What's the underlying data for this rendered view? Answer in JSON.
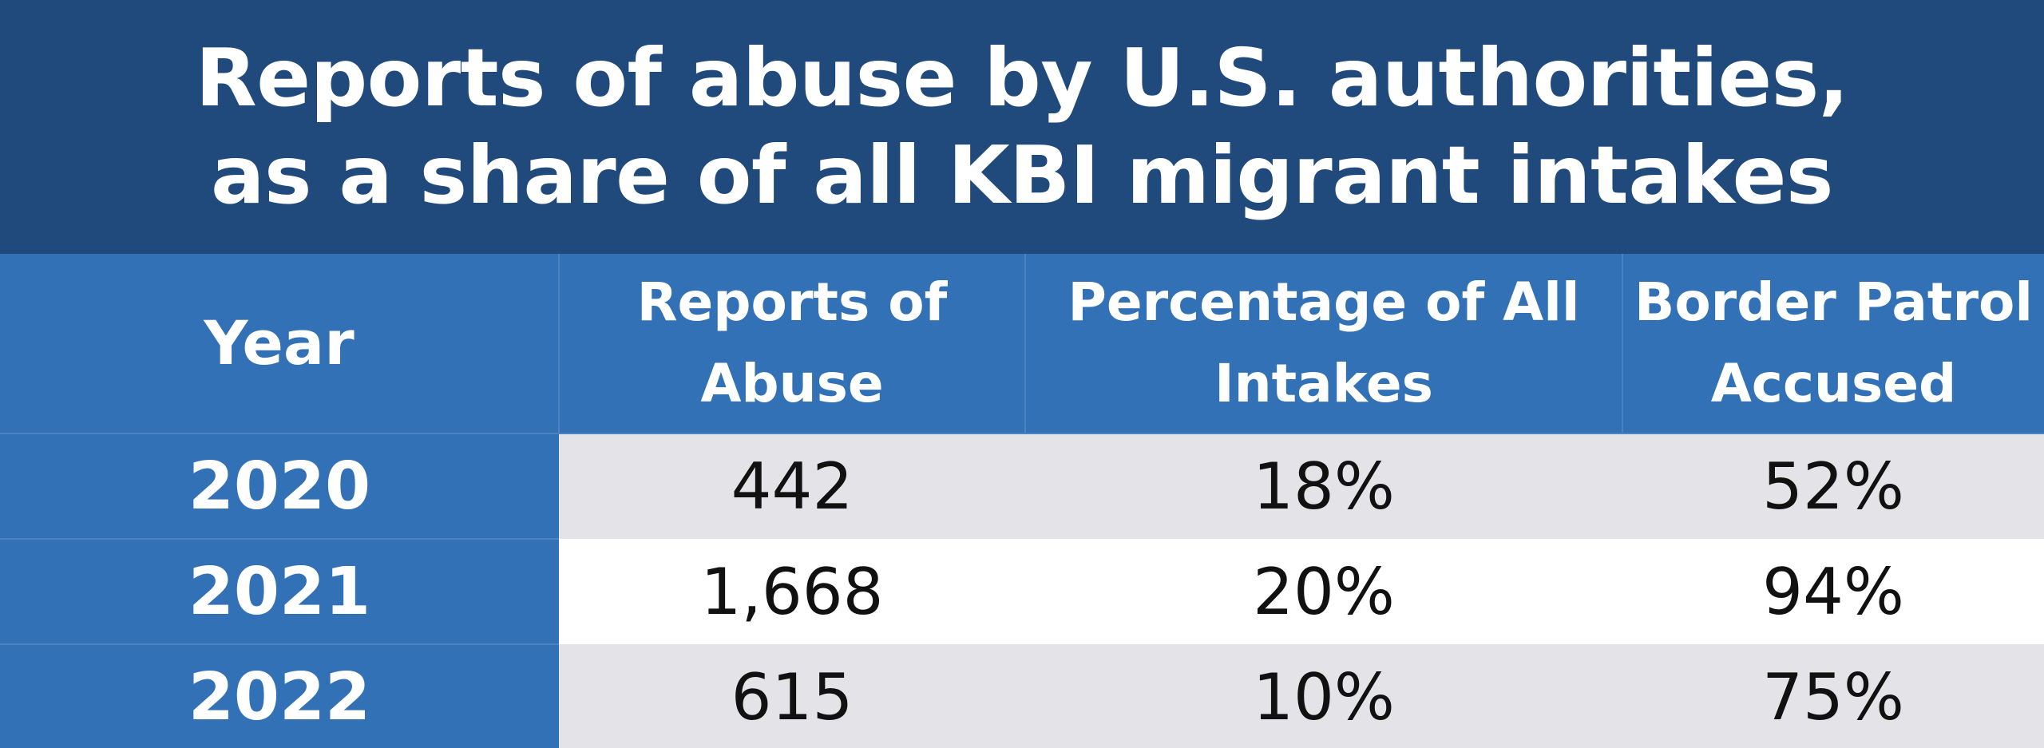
{
  "chart_data": {
    "type": "table",
    "title_lines": [
      "Reports of abuse by U.S. authorities,",
      "as a share of all KBI migrant intakes"
    ],
    "columns": [
      [
        "Year"
      ],
      [
        "Reports of",
        "Abuse"
      ],
      [
        "Percentage of All",
        "Intakes"
      ],
      [
        "Border Patrol",
        "Accused"
      ]
    ],
    "rows": [
      {
        "year": "2020",
        "reports": "442",
        "percentage": "18%",
        "border_patrol": "52%"
      },
      {
        "year": "2021",
        "reports": "1,668",
        "percentage": "20%",
        "border_patrol": "94%"
      },
      {
        "year": "2022",
        "reports": "615",
        "percentage": "10%",
        "border_patrol": "75%"
      }
    ],
    "values": {
      "reports_of_abuse": [
        442,
        1668,
        615
      ],
      "percentage_of_all_intakes": [
        18,
        20,
        10
      ],
      "border_patrol_accused": [
        52,
        94,
        75
      ]
    }
  },
  "colors": {
    "title_background": "#214a7c",
    "header_background": "#3371b6",
    "row_shaded": "#e4e4e8",
    "row_plain": "#ffffff",
    "header_text": "#ffffff",
    "cell_text": "#111111"
  }
}
